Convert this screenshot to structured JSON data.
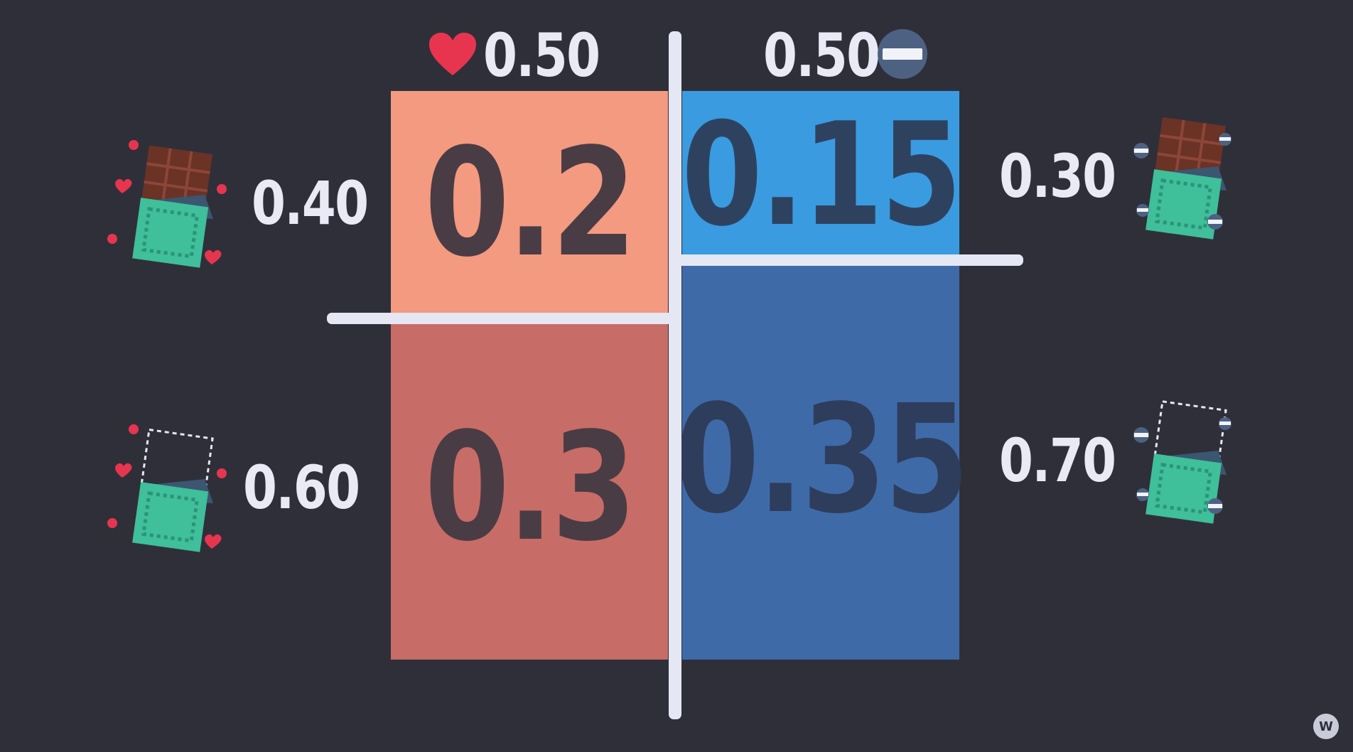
{
  "header": {
    "left_marginal": "0.50",
    "right_marginal": "0.50"
  },
  "rows": {
    "top_left": "0.40",
    "bottom_left": "0.60",
    "top_right": "0.30",
    "bottom_right": "0.70"
  },
  "cells": {
    "heart_with_chocolate": "0.2",
    "heart_without_chocolate": "0.3",
    "minus_with_chocolate": "0.15",
    "minus_without_chocolate": "0.35"
  },
  "icons": {
    "left_header": "heart-icon",
    "right_header": "minus-circle-icon",
    "left_top": "chocolate-with-hearts-icon",
    "left_bottom": "empty-wrapper-with-hearts-icon",
    "right_top": "chocolate-with-minus-icon",
    "right_bottom": "empty-wrapper-with-minus-icon"
  },
  "colors": {
    "background": "#2f2f3a",
    "cell_top_left": "#f39a80",
    "cell_bottom_left": "#c86c67",
    "cell_top_right": "#3a9be0",
    "cell_bottom_right": "#3f6aa8",
    "cell_text": "#4a3c44",
    "cell_text_blue": "#2e4260",
    "divider": "#e6e7f5",
    "heart": "#e8354f",
    "label": "#e9eaf5"
  },
  "watermark": "W"
}
